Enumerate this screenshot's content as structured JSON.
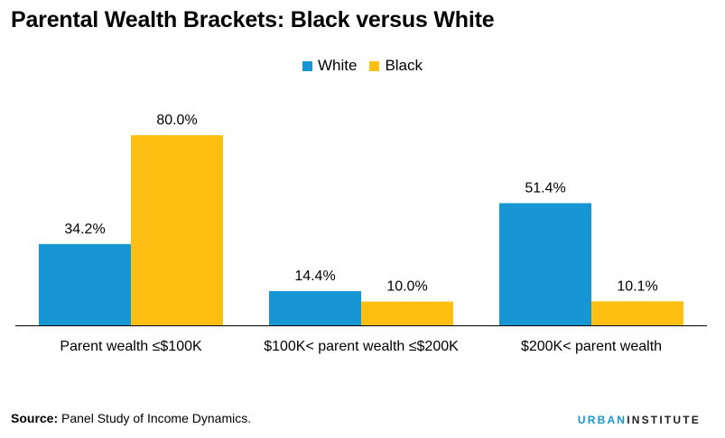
{
  "title": "Parental Wealth Brackets: Black versus White",
  "colors": {
    "White": "#1696d2",
    "Black": "#fdbf11",
    "axis": "#000000"
  },
  "chart_data": {
    "type": "bar",
    "title": "Parental Wealth Brackets: Black versus White",
    "categories": [
      "Parent wealth ≤$100K",
      "$100K< parent wealth ≤$200K",
      "$200K< parent wealth"
    ],
    "series": [
      {
        "name": "White",
        "values": [
          34.2,
          14.4,
          51.4
        ],
        "labels": [
          "34.2%",
          "14.4%",
          "51.4%"
        ]
      },
      {
        "name": "Black",
        "values": [
          80.0,
          10.0,
          10.1
        ],
        "labels": [
          "80.0%",
          "10.0%",
          "10.1%"
        ]
      }
    ],
    "ylim": [
      0,
      100
    ],
    "grid": false,
    "legend": "top-center"
  },
  "source": {
    "label": "Source:",
    "text": " Panel Study of Income Dynamics."
  },
  "brand": {
    "first": "URBAN",
    "second": "INSTITUTE"
  }
}
